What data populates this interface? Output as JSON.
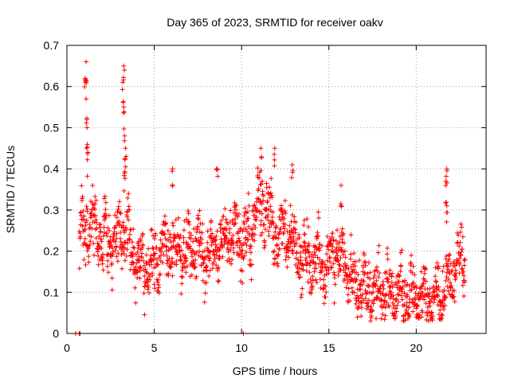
{
  "chart_data": {
    "type": "scatter",
    "title": "Day 365 of 2023, SRMTID for receiver oakv",
    "xlabel": "GPS time / hours",
    "ylabel": "SRMTID / TECUs",
    "xlim": [
      0,
      24
    ],
    "ylim": [
      0,
      0.7
    ],
    "xticks": [
      0,
      5,
      10,
      15,
      20
    ],
    "xtick_labels": [
      "0",
      "5",
      "10",
      "15",
      "20"
    ],
    "yticks": [
      0,
      0.1,
      0.2,
      0.3,
      0.4,
      0.5,
      0.6,
      0.7
    ],
    "ytick_labels": [
      "0",
      "0.1",
      "0.2",
      "0.3",
      "0.4",
      "0.5",
      "0.6",
      "0.7"
    ],
    "grid": true,
    "marker": "+",
    "marker_color": "#ff0000",
    "series": [
      {
        "name": "SRMTID",
        "profile": [
          [
            0.0,
            0.23
          ],
          [
            0.5,
            0.22
          ],
          [
            1.0,
            0.25
          ],
          [
            1.5,
            0.27
          ],
          [
            2.0,
            0.22
          ],
          [
            2.5,
            0.22
          ],
          [
            3.0,
            0.24
          ],
          [
            3.5,
            0.23
          ],
          [
            4.0,
            0.17
          ],
          [
            4.5,
            0.16
          ],
          [
            5.0,
            0.16
          ],
          [
            5.5,
            0.22
          ],
          [
            6.0,
            0.21
          ],
          [
            6.5,
            0.2
          ],
          [
            7.0,
            0.21
          ],
          [
            7.5,
            0.21
          ],
          [
            8.0,
            0.19
          ],
          [
            8.5,
            0.2
          ],
          [
            9.0,
            0.23
          ],
          [
            9.5,
            0.24
          ],
          [
            10.0,
            0.22
          ],
          [
            10.5,
            0.24
          ],
          [
            11.0,
            0.32
          ],
          [
            11.5,
            0.3
          ],
          [
            12.0,
            0.23
          ],
          [
            12.5,
            0.24
          ],
          [
            13.0,
            0.21
          ],
          [
            13.5,
            0.19
          ],
          [
            14.0,
            0.18
          ],
          [
            14.5,
            0.17
          ],
          [
            15.0,
            0.17
          ],
          [
            15.5,
            0.21
          ],
          [
            16.0,
            0.15
          ],
          [
            16.5,
            0.12
          ],
          [
            17.0,
            0.11
          ],
          [
            17.5,
            0.1
          ],
          [
            18.0,
            0.1
          ],
          [
            18.5,
            0.11
          ],
          [
            19.0,
            0.1
          ],
          [
            19.5,
            0.09
          ],
          [
            20.0,
            0.09
          ],
          [
            20.5,
            0.08
          ],
          [
            21.0,
            0.08
          ],
          [
            21.5,
            0.1
          ],
          [
            22.0,
            0.14
          ],
          [
            22.5,
            0.19
          ],
          [
            22.8,
            0.18
          ]
        ],
        "spread": 0.05,
        "x_range": [
          0.7,
          22.8
        ],
        "peaks": [
          {
            "x": 1.1,
            "y": 0.66
          },
          {
            "x": 1.05,
            "y": 0.62
          },
          {
            "x": 1.1,
            "y": 0.57
          },
          {
            "x": 1.15,
            "y": 0.5
          },
          {
            "x": 1.2,
            "y": 0.44
          },
          {
            "x": 3.25,
            "y": 0.65
          },
          {
            "x": 3.2,
            "y": 0.61
          },
          {
            "x": 3.25,
            "y": 0.55
          },
          {
            "x": 3.3,
            "y": 0.48
          },
          {
            "x": 3.35,
            "y": 0.45
          },
          {
            "x": 3.3,
            "y": 0.39
          },
          {
            "x": 6.05,
            "y": 0.4
          },
          {
            "x": 8.6,
            "y": 0.4
          },
          {
            "x": 11.1,
            "y": 0.45
          },
          {
            "x": 11.9,
            "y": 0.45
          },
          {
            "x": 12.9,
            "y": 0.41
          },
          {
            "x": 15.7,
            "y": 0.36
          },
          {
            "x": 21.75,
            "y": 0.4
          },
          {
            "x": 21.7,
            "y": 0.37
          },
          {
            "x": 21.75,
            "y": 0.31
          }
        ],
        "zero_points": [
          {
            "x": 0.5,
            "y": 0.0
          },
          {
            "x": 0.7,
            "y": 0.0
          },
          {
            "x": 0.75,
            "y": 0.0
          },
          {
            "x": 10.1,
            "y": 0.0
          }
        ]
      }
    ]
  }
}
